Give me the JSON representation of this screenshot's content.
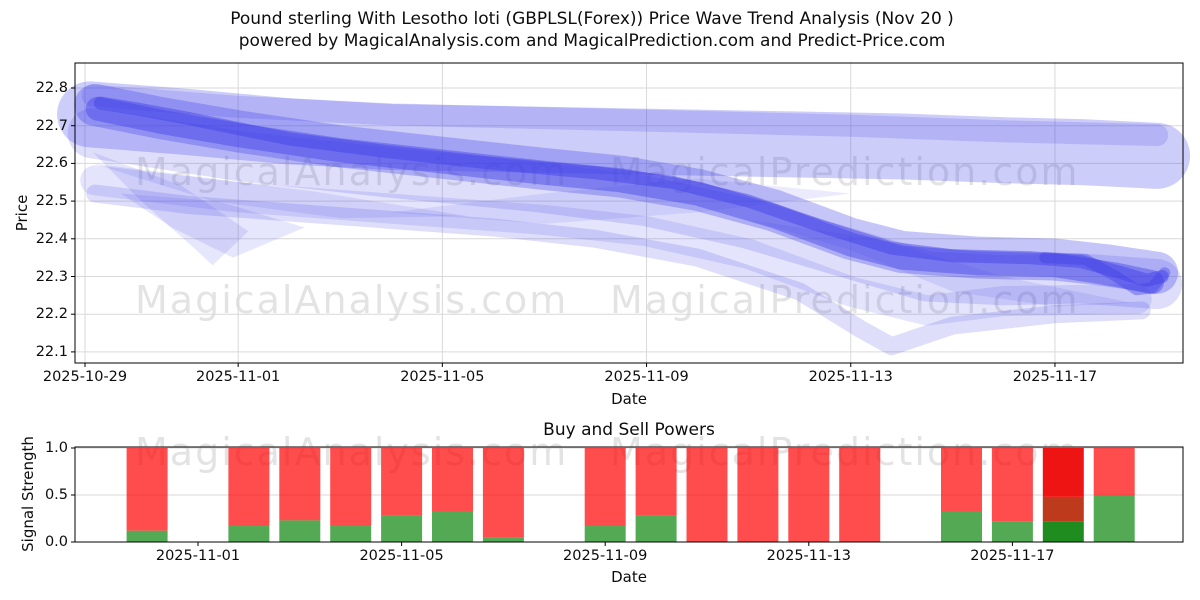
{
  "title": {
    "line1": "Pound sterling With Lesotho loti (GBPLSL(Forex)) Price Wave Trend Analysis (Nov 20 )",
    "line2": "powered by MagicalAnalysis.com and MagicalPrediction.com and Predict-Price.com"
  },
  "watermark": {
    "left": "MagicalAnalysis.com",
    "right": "MagicalPrediction.com"
  },
  "price_chart": {
    "ylabel": "Price",
    "xlabel": "Date",
    "xtick_labels": [
      "2025-10-29",
      "2025-11-01",
      "2025-11-05",
      "2025-11-09",
      "2025-11-13",
      "2025-11-17"
    ],
    "ytick_labels": [
      "22.8",
      "22.7",
      "22.6",
      "22.5",
      "22.4",
      "22.3",
      "22.2",
      "22.1"
    ]
  },
  "power_chart": {
    "title": "Buy and Sell Powers",
    "ylabel": "Signal Strength",
    "xlabel": "Date",
    "xtick_labels": [
      "2025-11-01",
      "2025-11-05",
      "2025-11-09",
      "2025-11-13",
      "2025-11-17"
    ],
    "ytick_labels": [
      "1.0",
      "0.5",
      "0.0"
    ]
  },
  "colors": {
    "band_blue": "rgba(62,62,232,1)",
    "grid": "#d9d9d9",
    "spine": "#000000",
    "bar_red": "rgba(255,0,0,0.70)",
    "bar_green": "rgba(0,128,0,0.67)",
    "special_red": "#ee1414",
    "special_brown": "#bd3a1c",
    "special_green": "#1f8c1f",
    "text": "#0d0d0d"
  },
  "chart_data": [
    {
      "type": "area",
      "title": "Pound sterling With Lesotho loti (GBPLSL(Forex)) Price Wave Trend Analysis (Nov 20 )",
      "xlabel": "Date",
      "ylabel": "Price",
      "ylim": [
        22.07,
        22.87
      ],
      "grid": true,
      "x_origin_date": "2025-10-29",
      "xticks": [
        {
          "label": "2025-10-29",
          "day": 0
        },
        {
          "label": "2025-11-01",
          "day": 3
        },
        {
          "label": "2025-11-05",
          "day": 7
        },
        {
          "label": "2025-11-09",
          "day": 11
        },
        {
          "label": "2025-11-13",
          "day": 15
        },
        {
          "label": "2025-11-17",
          "day": 19
        }
      ],
      "yticks": [
        22.8,
        22.7,
        22.6,
        22.5,
        22.4,
        22.3,
        22.2,
        22.1
      ],
      "bands": [
        {
          "name": "upper-light-wide",
          "width": 66,
          "opacity": 0.26,
          "points": [
            [
              0.1,
              22.73
            ],
            [
              2,
              22.71
            ],
            [
              4,
              22.685
            ],
            [
              6,
              22.67
            ],
            [
              8,
              22.665
            ],
            [
              10,
              22.66
            ],
            [
              12,
              22.655
            ],
            [
              14,
              22.65
            ],
            [
              16,
              22.645
            ],
            [
              18,
              22.635
            ],
            [
              19.5,
              22.63
            ],
            [
              21,
              22.62
            ]
          ]
        },
        {
          "name": "upper-light-edge",
          "width": 22,
          "opacity": 0.18,
          "points": [
            [
              0.15,
              22.78
            ],
            [
              3,
              22.75
            ],
            [
              6,
              22.73
            ],
            [
              9,
              22.72
            ],
            [
              12,
              22.71
            ],
            [
              15,
              22.7
            ],
            [
              18,
              22.685
            ],
            [
              21,
              22.675
            ]
          ]
        },
        {
          "name": "core-outer",
          "width": 42,
          "opacity": 0.3,
          "points": [
            [
              0.2,
              22.755
            ],
            [
              1.5,
              22.72
            ],
            [
              3,
              22.685
            ],
            [
              5,
              22.645
            ],
            [
              7,
              22.615
            ],
            [
              9,
              22.585
            ],
            [
              10.5,
              22.565
            ],
            [
              12,
              22.53
            ],
            [
              13.5,
              22.475
            ],
            [
              15,
              22.4
            ],
            [
              16,
              22.365
            ],
            [
              17.5,
              22.35
            ],
            [
              19,
              22.345
            ],
            [
              20,
              22.33
            ],
            [
              21,
              22.31
            ]
          ]
        },
        {
          "name": "core-dark",
          "width": 24,
          "opacity": 0.42,
          "points": [
            [
              0.25,
              22.745
            ],
            [
              1.5,
              22.71
            ],
            [
              3,
              22.675
            ],
            [
              5,
              22.635
            ],
            [
              7,
              22.605
            ],
            [
              9,
              22.575
            ],
            [
              10.5,
              22.555
            ],
            [
              12,
              22.52
            ],
            [
              13.5,
              22.46
            ],
            [
              15,
              22.385
            ],
            [
              16,
              22.35
            ],
            [
              17.5,
              22.335
            ],
            [
              19,
              22.33
            ],
            [
              20.2,
              22.305
            ],
            [
              20.9,
              22.285
            ]
          ]
        },
        {
          "name": "core-darkest",
          "width": 13,
          "opacity": 0.45,
          "points": [
            [
              0.3,
              22.76
            ],
            [
              1,
              22.745
            ],
            [
              2,
              22.72
            ],
            [
              4,
              22.665
            ],
            [
              6,
              22.63
            ],
            [
              8,
              22.6
            ],
            [
              10,
              22.575
            ],
            [
              11.5,
              22.55
            ],
            [
              13,
              22.5
            ],
            [
              14.5,
              22.43
            ],
            [
              15.8,
              22.375
            ],
            [
              17,
              22.355
            ],
            [
              18.5,
              22.35
            ],
            [
              19.5,
              22.34
            ],
            [
              20.3,
              22.31
            ],
            [
              20.8,
              22.29
            ],
            [
              21.1,
              22.3
            ]
          ]
        },
        {
          "name": "mid-light-broad",
          "width": 50,
          "opacity": 0.17,
          "points": [
            [
              0.15,
              22.68
            ],
            [
              3,
              22.62
            ],
            [
              6,
              22.575
            ],
            [
              9,
              22.535
            ],
            [
              11,
              22.5
            ],
            [
              13,
              22.44
            ],
            [
              15,
              22.36
            ],
            [
              16.5,
              22.3
            ],
            [
              18,
              22.29
            ],
            [
              19.5,
              22.295
            ],
            [
              21,
              22.28
            ]
          ]
        },
        {
          "name": "lower-light-dip",
          "width": 18,
          "opacity": 0.17,
          "points": [
            [
              0.2,
              22.52
            ],
            [
              2,
              22.49
            ],
            [
              5,
              22.46
            ],
            [
              8,
              22.43
            ],
            [
              10,
              22.4
            ],
            [
              12,
              22.35
            ],
            [
              14,
              22.26
            ],
            [
              15.2,
              22.16
            ],
            [
              15.8,
              22.115
            ],
            [
              17,
              22.17
            ],
            [
              19,
              22.2
            ],
            [
              20.7,
              22.21
            ]
          ]
        },
        {
          "name": "lower-light-2",
          "width": 30,
          "opacity": 0.14,
          "points": [
            [
              0.2,
              22.555
            ],
            [
              3,
              22.51
            ],
            [
              6,
              22.48
            ],
            [
              9,
              22.45
            ],
            [
              11,
              22.42
            ],
            [
              13,
              22.36
            ],
            [
              15,
              22.26
            ],
            [
              16.5,
              22.21
            ],
            [
              18,
              22.235
            ],
            [
              20.6,
              22.24
            ]
          ]
        },
        {
          "name": "right-wiggle",
          "width": 11,
          "opacity": 0.4,
          "points": [
            [
              18.8,
              22.35
            ],
            [
              19.6,
              22.345
            ],
            [
              20.2,
              22.3
            ],
            [
              20.6,
              22.265
            ],
            [
              20.9,
              22.27
            ],
            [
              21.15,
              22.31
            ]
          ]
        }
      ],
      "polygons": [
        {
          "name": "left-fan-1",
          "opacity": 0.13,
          "points": [
            [
              0.15,
              22.63
            ],
            [
              1.1,
              22.5
            ],
            [
              2.1,
              22.38
            ],
            [
              2.5,
              22.33
            ],
            [
              3.2,
              22.42
            ],
            [
              1.9,
              22.54
            ]
          ]
        },
        {
          "name": "left-fan-2",
          "opacity": 0.13,
          "points": [
            [
              0.7,
              22.52
            ],
            [
              1.7,
              22.43
            ],
            [
              2.9,
              22.35
            ],
            [
              4.3,
              22.43
            ],
            [
              2.6,
              22.5
            ]
          ]
        },
        {
          "name": "left-fan-3",
          "opacity": 0.12,
          "points": [
            [
              0.15,
              22.6
            ],
            [
              2.5,
              22.5
            ],
            [
              5,
              22.455
            ],
            [
              7.5,
              22.46
            ],
            [
              4.5,
              22.525
            ]
          ]
        },
        {
          "name": "mid-cross",
          "opacity": 0.1,
          "points": [
            [
              6,
              22.47
            ],
            [
              9,
              22.52
            ],
            [
              12,
              22.56
            ],
            [
              15,
              22.52
            ],
            [
              12,
              22.47
            ],
            [
              9,
              22.44
            ]
          ]
        },
        {
          "name": "right-under-wedge",
          "opacity": 0.12,
          "points": [
            [
              13,
              22.45
            ],
            [
              15,
              22.37
            ],
            [
              17,
              22.26
            ],
            [
              19,
              22.22
            ],
            [
              20.5,
              22.23
            ],
            [
              18,
              22.3
            ],
            [
              15.5,
              22.4
            ]
          ]
        }
      ]
    },
    {
      "type": "bar",
      "title": "Buy and Sell Powers",
      "xlabel": "Date",
      "ylabel": "Signal Strength",
      "ylim": [
        0,
        1.0
      ],
      "grid": true,
      "stacked": true,
      "x_origin_date": "2025-11-01",
      "xticks": [
        {
          "label": "2025-11-01",
          "day": 0
        },
        {
          "label": "2025-11-05",
          "day": 4
        },
        {
          "label": "2025-11-09",
          "day": 8
        },
        {
          "label": "2025-11-13",
          "day": 12
        },
        {
          "label": "2025-11-17",
          "day": 16
        }
      ],
      "yticks": [
        1.0,
        0.5,
        0.0
      ],
      "categories": [
        "2025-10-31",
        "2025-11-02",
        "2025-11-03",
        "2025-11-04",
        "2025-11-05",
        "2025-11-06",
        "2025-11-07",
        "2025-11-09",
        "2025-11-10",
        "2025-11-11",
        "2025-11-12",
        "2025-11-13",
        "2025-11-14",
        "2025-11-16",
        "2025-11-17",
        "2025-11-18",
        "2025-11-19"
      ],
      "series": [
        {
          "name": "buy",
          "values": [
            0.12,
            0.17,
            0.23,
            0.17,
            0.28,
            0.33,
            0.05,
            0.17,
            0.28,
            0.0,
            0.0,
            0.0,
            0.0,
            0.33,
            0.22,
            0.22,
            0.5
          ]
        },
        {
          "name": "sell",
          "values": [
            0.88,
            0.83,
            0.77,
            0.83,
            0.72,
            0.67,
            0.95,
            0.83,
            0.72,
            1.0,
            1.0,
            1.0,
            1.0,
            0.67,
            0.78,
            0.78,
            0.5
          ]
        }
      ],
      "special_bar": {
        "category": "2025-11-18",
        "index": 15,
        "segments": [
          {
            "from": 0.0,
            "to": 0.22,
            "color_key": "special_green"
          },
          {
            "from": 0.22,
            "to": 0.48,
            "color_key": "special_brown"
          },
          {
            "from": 0.48,
            "to": 1.0,
            "color_key": "special_red"
          }
        ]
      }
    }
  ]
}
